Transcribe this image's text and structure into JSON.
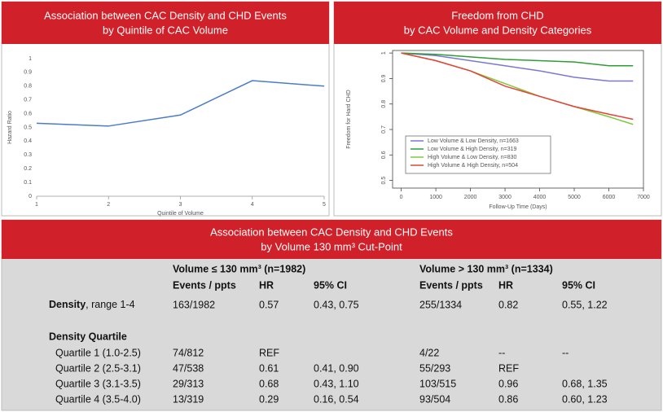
{
  "chart_data": [
    {
      "type": "line",
      "title": "Association between CAC Density and CHD Events",
      "subtitle": "by Quintile of CAC Volume",
      "x_label": "Quintile of Volume",
      "y_label": "Hazard Ratio",
      "x": [
        1,
        2,
        3,
        4,
        5
      ],
      "values": [
        0.53,
        0.51,
        0.59,
        0.84,
        0.8
      ],
      "color": "#4a7cc9",
      "xlim": [
        1,
        5
      ],
      "xticks": [
        1,
        2,
        3,
        4,
        5
      ],
      "ylim": [
        0,
        1
      ],
      "yticks": [
        0,
        0.1,
        0.2,
        0.3,
        0.4,
        0.5,
        0.6,
        0.7,
        0.8,
        0.9,
        1
      ],
      "grid": false
    },
    {
      "type": "line",
      "title": "Freedom from CHD",
      "subtitle": "by CAC Volume and Density Categories",
      "x_label": "Follow-Up Time (Days)",
      "y_label": "Freedom for Hard CHD",
      "x": [
        0,
        1000,
        2000,
        3000,
        4000,
        5000,
        6000,
        6700
      ],
      "series": [
        {
          "name": "Low Volume & Low Density, n=1663",
          "color": "#7b78d4",
          "values": [
            1,
            0.99,
            0.97,
            0.95,
            0.93,
            0.905,
            0.89,
            0.89
          ]
        },
        {
          "name": "Low Volume & High Density, n=319",
          "color": "#2e9e34",
          "values": [
            1,
            0.995,
            0.985,
            0.975,
            0.97,
            0.965,
            0.95,
            0.95
          ]
        },
        {
          "name": "High Volume & Low Density, n=830",
          "color": "#7ccc3a",
          "values": [
            1,
            0.97,
            0.93,
            0.88,
            0.83,
            0.79,
            0.75,
            0.72
          ]
        },
        {
          "name": "High Volume & High Density, n=504",
          "color": "#e8403a",
          "values": [
            1,
            0.97,
            0.93,
            0.87,
            0.83,
            0.79,
            0.76,
            0.74
          ]
        }
      ],
      "xlim": [
        -250,
        7000
      ],
      "xticks": [
        0,
        1000,
        2000,
        3000,
        4000,
        5000,
        6000,
        7000
      ],
      "ylim": [
        0.47,
        1.01
      ],
      "yticks": [
        0.5,
        0.6,
        0.7,
        0.8,
        0.9,
        1.0
      ],
      "grid": false,
      "legend": "bottom-left"
    }
  ],
  "table": {
    "title": "Association between CAC Density and CHD Events",
    "subtitle": "by Volume 130 mm³ Cut-Point",
    "groups": [
      "Volume ≤ 130 mm³ (n=1982)",
      "Volume > 130 mm³ (n=1334)"
    ],
    "columns": [
      "Events / ppts",
      "HR",
      "95% CI",
      "Events / ppts",
      "HR",
      "95% CI"
    ],
    "rows": [
      {
        "label": "Density",
        "label_note": ", range 1-4",
        "cells": [
          "163/1982",
          "0.57",
          "0.43, 0.75",
          "255/1334",
          "0.82",
          "0.55, 1.22"
        ]
      }
    ],
    "section": "Density Quartile",
    "section_rows": [
      {
        "label": "Quartile 1 (1.0-2.5)",
        "cells": [
          "74/812",
          "REF",
          null,
          "4/22",
          "--",
          "--"
        ]
      },
      {
        "label": "Quartile 2 (2.5-3.1)",
        "cells": [
          "47/538",
          "0.61",
          "0.41, 0.90",
          "55/293",
          "REF",
          null
        ]
      },
      {
        "label": "Quartile 3 (3.1-3.5)",
        "cells": [
          "29/313",
          "0.68",
          "0.43, 1.10",
          "103/515",
          "0.96",
          "0.68, 1.35"
        ]
      },
      {
        "label": "Quartile 4 (3.5-4.0)",
        "cells": [
          "13/319",
          "0.29",
          "0.16, 0.54",
          "93/504",
          "0.86",
          "0.60, 1.23"
        ]
      }
    ]
  }
}
